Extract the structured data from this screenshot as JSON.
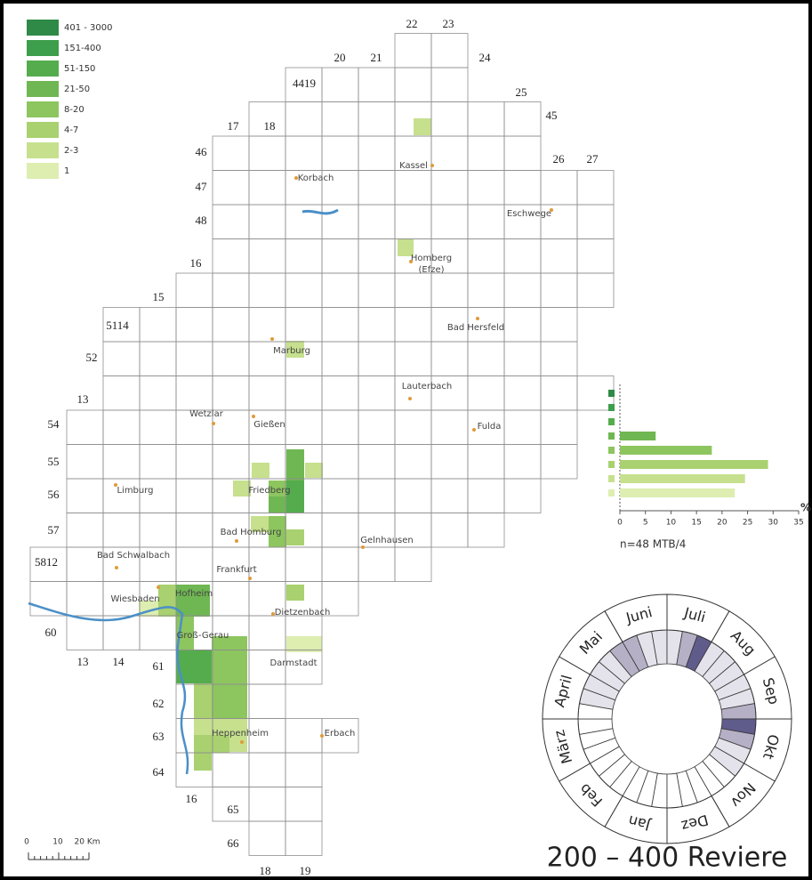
{
  "legend": {
    "items": [
      {
        "label": "401 - 3000",
        "color": "#2f8a47"
      },
      {
        "label": "151-400",
        "color": "#3d9e4b"
      },
      {
        "label": "51-150",
        "color": "#55ac4d"
      },
      {
        "label": "21-50",
        "color": "#6fb752"
      },
      {
        "label": "8-20",
        "color": "#8dc55f"
      },
      {
        "label": "4-7",
        "color": "#a9d16f"
      },
      {
        "label": "2-3",
        "color": "#c6e08e"
      },
      {
        "label": "1",
        "color": "#ddeeb0"
      }
    ]
  },
  "map": {
    "grid_labels": [
      "22",
      "23",
      "20",
      "21",
      "24",
      "4419",
      "25",
      "45",
      "17",
      "18",
      "46",
      "26",
      "27",
      "47",
      "48",
      "16",
      "15",
      "5114",
      "52",
      "13",
      "54",
      "55",
      "56",
      "57",
      "5812",
      "60",
      "13",
      "14",
      "61",
      "62",
      "63",
      "64",
      "16",
      "65",
      "66",
      "18",
      "19"
    ],
    "cities": [
      "Kassel",
      "Korbach",
      "Eschwege",
      "Homberg",
      "(Efze)",
      "Bad Hersfeld",
      "Marburg",
      "Lauterbach",
      "Fulda",
      "Wetzlar",
      "Gießen",
      "Limburg",
      "Friedberg",
      "Bad Homburg",
      "Gelnhausen",
      "Bad Schwalbach",
      "Frankfurt",
      "Wiesbaden",
      "Hofheim",
      "Dietzenbach",
      "Groß-Gerau",
      "Darmstadt",
      "Heppenheim",
      "Erbach"
    ]
  },
  "chart_data": {
    "type": "bar",
    "values": [
      0,
      0,
      0,
      7,
      18,
      29,
      24.5,
      22.5
    ],
    "xlim": [
      0,
      35
    ],
    "xticks": [
      0,
      5,
      10,
      15,
      20,
      25,
      30,
      35
    ],
    "xlabel": "%",
    "note": "n=48 MTB/4"
  },
  "phenology": {
    "months": [
      "Jan",
      "Feb",
      "März",
      "April",
      "Mai",
      "Juni",
      "Juli",
      "Aug",
      "Sep",
      "Okt",
      "Nov",
      "Dez"
    ],
    "levels": [
      0,
      0,
      0,
      0,
      0,
      0,
      0,
      0,
      0,
      0,
      1,
      1,
      1,
      1,
      2,
      2,
      1,
      1,
      1,
      2,
      3,
      1,
      1,
      1,
      1,
      1,
      2,
      3,
      2,
      1,
      1,
      0,
      0,
      0,
      0,
      0
    ],
    "level_colors": [
      "#ffffff",
      "#e4e2ea",
      "#b6b0c6",
      "#5f5c8c"
    ]
  },
  "scale": {
    "labels": [
      "0",
      "10",
      "20 Km"
    ]
  },
  "title": "200 – 400 Reviere"
}
